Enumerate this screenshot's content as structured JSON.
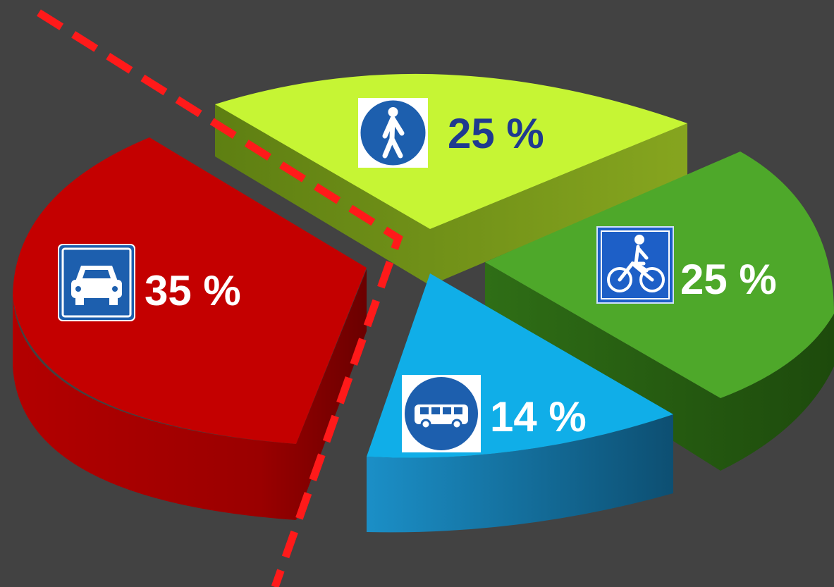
{
  "chart_data": {
    "type": "pie",
    "title": "",
    "slices": [
      {
        "mode": "walking",
        "icon": "pedestrian-icon",
        "value": 25,
        "label": "25 %",
        "color": "#c6f534",
        "label_color": "#1f3a8f"
      },
      {
        "mode": "cycling",
        "icon": "bicycle-icon",
        "value": 25,
        "label": "25 %",
        "color": "#4ea82a",
        "label_color": "#ffffff"
      },
      {
        "mode": "bus",
        "icon": "bus-icon",
        "value": 14,
        "label": "14 %",
        "color": "#10aee8",
        "label_color": "#ffffff"
      },
      {
        "mode": "car",
        "icon": "car-icon",
        "value": 35,
        "label": "35 %",
        "color": "#c40000",
        "label_color": "#ffffff"
      }
    ],
    "annotation": {
      "kind": "dashed-line",
      "color": "#ff1a1a"
    },
    "background": "#424242"
  }
}
